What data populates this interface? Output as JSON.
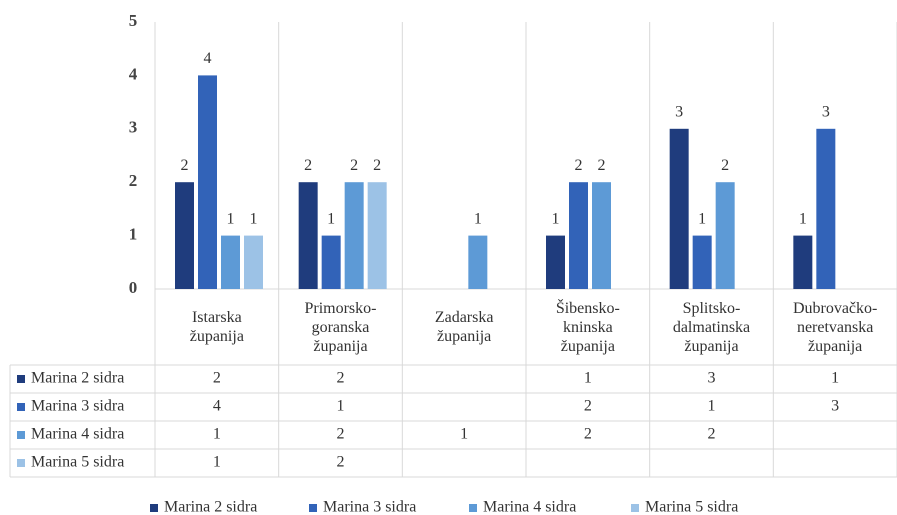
{
  "chart_data": {
    "type": "bar",
    "categories": [
      "Istarska županija",
      "Primorsko-goranska županija",
      "Zadarska županija",
      "Šibensko-kninska županija",
      "Splitsko-dalmatinska županija",
      "Dubrovačko-neretvanska županija"
    ],
    "series": [
      {
        "name": "Marina 2 sidra",
        "color": "#1f3c7d",
        "values": [
          2,
          2,
          null,
          1,
          3,
          1
        ]
      },
      {
        "name": "Marina 3 sidra",
        "color": "#3263b8",
        "values": [
          4,
          1,
          null,
          2,
          1,
          3
        ]
      },
      {
        "name": "Marina 4 sidra",
        "color": "#5d9ad6",
        "values": [
          1,
          2,
          1,
          2,
          2,
          null
        ]
      },
      {
        "name": "Marina 5 sidra",
        "color": "#9cc2e6",
        "values": [
          1,
          2,
          null,
          null,
          null,
          null
        ]
      }
    ],
    "ylim": [
      0,
      5
    ],
    "yticks": [
      0,
      1,
      2,
      3,
      4,
      5
    ],
    "grid": false,
    "legend": "bottom"
  }
}
